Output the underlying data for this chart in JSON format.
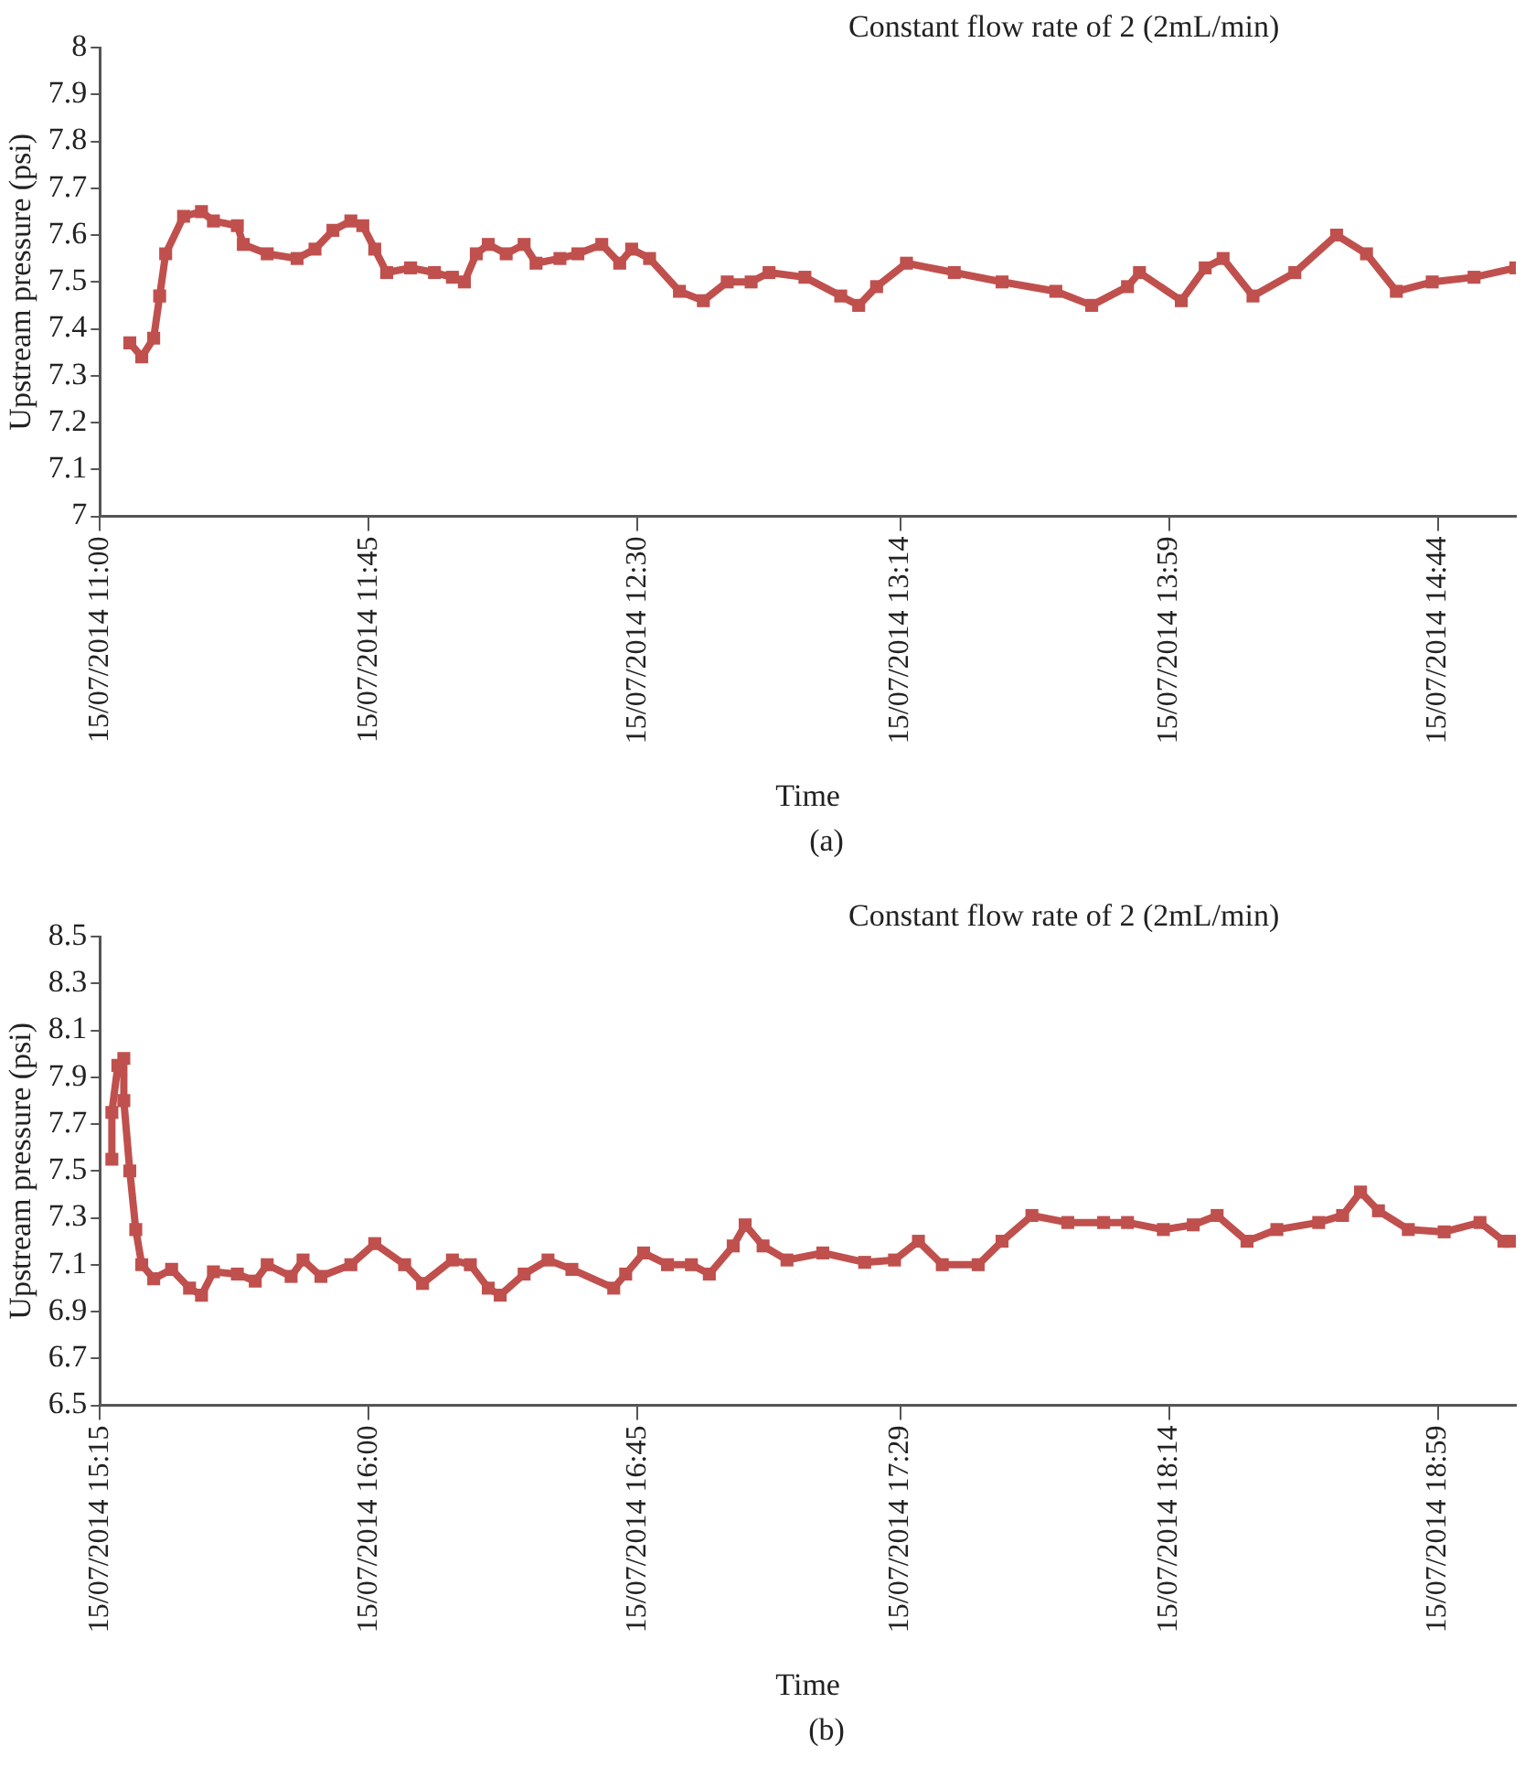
{
  "chart_data": [
    {
      "type": "line",
      "title": "Constant flow rate of 2 (2mL/min)",
      "xlabel": "Time",
      "ylabel": "Upstream pressure (psi)",
      "annotations": [
        "(a)"
      ],
      "marker": "square",
      "line_style": "solid",
      "grid": false,
      "legend": false,
      "xlim": [
        "2014-07-15T11:00",
        "2014-07-15T14:57"
      ],
      "xticks": [
        {
          "value": "2014-07-15T11:00",
          "label": "15/07/2014 11:00"
        },
        {
          "value": "2014-07-15T11:45",
          "label": "15/07/2014 11:45"
        },
        {
          "value": "2014-07-15T12:30",
          "label": "15/07/2014 12:30"
        },
        {
          "value": "2014-07-15T13:14",
          "label": "15/07/2014 13:14"
        },
        {
          "value": "2014-07-15T13:59",
          "label": "15/07/2014 13:59"
        },
        {
          "value": "2014-07-15T14:44",
          "label": "15/07/2014 14:44"
        }
      ],
      "ylim": [
        7,
        8
      ],
      "yticks": [
        7,
        7.1,
        7.2,
        7.3,
        7.4,
        7.5,
        7.6,
        7.7,
        7.8,
        7.9,
        8
      ],
      "series": [
        {
          "color": "#c0504d",
          "x": [
            "2014-07-15T11:05",
            "2014-07-15T11:07",
            "2014-07-15T11:09",
            "2014-07-15T11:10",
            "2014-07-15T11:11",
            "2014-07-15T11:14",
            "2014-07-15T11:17",
            "2014-07-15T11:19",
            "2014-07-15T11:23",
            "2014-07-15T11:24",
            "2014-07-15T11:28",
            "2014-07-15T11:33",
            "2014-07-15T11:36",
            "2014-07-15T11:39",
            "2014-07-15T11:42",
            "2014-07-15T11:44",
            "2014-07-15T11:46",
            "2014-07-15T11:48",
            "2014-07-15T11:52",
            "2014-07-15T11:56",
            "2014-07-15T11:59",
            "2014-07-15T12:01",
            "2014-07-15T12:03",
            "2014-07-15T12:05",
            "2014-07-15T12:08",
            "2014-07-15T12:11",
            "2014-07-15T12:13",
            "2014-07-15T12:17",
            "2014-07-15T12:20",
            "2014-07-15T12:24",
            "2014-07-15T12:27",
            "2014-07-15T12:29",
            "2014-07-15T12:32",
            "2014-07-15T12:37",
            "2014-07-15T12:41",
            "2014-07-15T12:45",
            "2014-07-15T12:49",
            "2014-07-15T12:52",
            "2014-07-15T12:58",
            "2014-07-15T13:04",
            "2014-07-15T13:07",
            "2014-07-15T13:10",
            "2014-07-15T13:15",
            "2014-07-15T13:23",
            "2014-07-15T13:31",
            "2014-07-15T13:40",
            "2014-07-15T13:46",
            "2014-07-15T13:52",
            "2014-07-15T13:54",
            "2014-07-15T14:01",
            "2014-07-15T14:05",
            "2014-07-15T14:08",
            "2014-07-15T14:13",
            "2014-07-15T14:20",
            "2014-07-15T14:27",
            "2014-07-15T14:32",
            "2014-07-15T14:37",
            "2014-07-15T14:43",
            "2014-07-15T14:50",
            "2014-07-15T14:57"
          ],
          "values": [
            7.37,
            7.34,
            7.38,
            7.47,
            7.56,
            7.64,
            7.65,
            7.63,
            7.62,
            7.58,
            7.56,
            7.55,
            7.57,
            7.61,
            7.63,
            7.62,
            7.57,
            7.52,
            7.53,
            7.52,
            7.51,
            7.5,
            7.56,
            7.58,
            7.56,
            7.58,
            7.54,
            7.55,
            7.56,
            7.58,
            7.54,
            7.57,
            7.55,
            7.48,
            7.46,
            7.5,
            7.5,
            7.52,
            7.51,
            7.47,
            7.45,
            7.49,
            7.54,
            7.52,
            7.5,
            7.48,
            7.45,
            7.49,
            7.52,
            7.46,
            7.53,
            7.55,
            7.47,
            7.52,
            7.6,
            7.56,
            7.48,
            7.5,
            7.51,
            7.53
          ]
        }
      ]
    },
    {
      "type": "line",
      "title": "Constant flow rate of 2 (2mL/min)",
      "xlabel": "Time",
      "ylabel": "Upstream pressure (psi)",
      "annotations": [
        "(b)"
      ],
      "marker": "square",
      "line_style": "solid",
      "grid": false,
      "legend": false,
      "xlim": [
        "2014-07-15T15:15",
        "2014-07-15T19:12"
      ],
      "xticks": [
        {
          "value": "2014-07-15T15:15",
          "label": "15/07/2014 15:15"
        },
        {
          "value": "2014-07-15T16:00",
          "label": "15/07/2014 16:00"
        },
        {
          "value": "2014-07-15T16:45",
          "label": "15/07/2014 16:45"
        },
        {
          "value": "2014-07-15T17:29",
          "label": "15/07/2014 17:29"
        },
        {
          "value": "2014-07-15T18:14",
          "label": "15/07/2014 18:14"
        },
        {
          "value": "2014-07-15T18:59",
          "label": "15/07/2014 18:59"
        }
      ],
      "ylim": [
        6.5,
        8.5
      ],
      "yticks": [
        6.5,
        6.7,
        6.9,
        7.1,
        7.3,
        7.5,
        7.7,
        7.9,
        8.1,
        8.3,
        8.5
      ],
      "series": [
        {
          "color": "#c0504d",
          "x": [
            "2014-07-15T15:17",
            "2014-07-15T15:17",
            "2014-07-15T15:18",
            "2014-07-15T15:19",
            "2014-07-15T15:19",
            "2014-07-15T15:20",
            "2014-07-15T15:21",
            "2014-07-15T15:22",
            "2014-07-15T15:24",
            "2014-07-15T15:27",
            "2014-07-15T15:30",
            "2014-07-15T15:32",
            "2014-07-15T15:34",
            "2014-07-15T15:38",
            "2014-07-15T15:41",
            "2014-07-15T15:43",
            "2014-07-15T15:47",
            "2014-07-15T15:49",
            "2014-07-15T15:52",
            "2014-07-15T15:57",
            "2014-07-15T16:01",
            "2014-07-15T16:06",
            "2014-07-15T16:09",
            "2014-07-15T16:14",
            "2014-07-15T16:17",
            "2014-07-15T16:20",
            "2014-07-15T16:22",
            "2014-07-15T16:26",
            "2014-07-15T16:30",
            "2014-07-15T16:34",
            "2014-07-15T16:41",
            "2014-07-15T16:43",
            "2014-07-15T16:46",
            "2014-07-15T16:50",
            "2014-07-15T16:54",
            "2014-07-15T16:57",
            "2014-07-15T17:01",
            "2014-07-15T17:03",
            "2014-07-15T17:06",
            "2014-07-15T17:10",
            "2014-07-15T17:16",
            "2014-07-15T17:23",
            "2014-07-15T17:28",
            "2014-07-15T17:32",
            "2014-07-15T17:36",
            "2014-07-15T17:42",
            "2014-07-15T17:46",
            "2014-07-15T17:51",
            "2014-07-15T17:57",
            "2014-07-15T18:03",
            "2014-07-15T18:07",
            "2014-07-15T18:13",
            "2014-07-15T18:18",
            "2014-07-15T18:22",
            "2014-07-15T18:27",
            "2014-07-15T18:32",
            "2014-07-15T18:39",
            "2014-07-15T18:43",
            "2014-07-15T18:46",
            "2014-07-15T18:49",
            "2014-07-15T18:54",
            "2014-07-15T19:00",
            "2014-07-15T19:06",
            "2014-07-15T19:10",
            "2014-07-15T19:11"
          ],
          "values": [
            7.55,
            7.75,
            7.95,
            7.98,
            7.8,
            7.5,
            7.25,
            7.1,
            7.04,
            7.08,
            7,
            6.97,
            7.07,
            7.06,
            7.03,
            7.1,
            7.05,
            7.12,
            7.05,
            7.1,
            7.19,
            7.1,
            7.02,
            7.12,
            7.1,
            7,
            6.97,
            7.06,
            7.12,
            7.08,
            7,
            7.06,
            7.15,
            7.1,
            7.1,
            7.06,
            7.18,
            7.27,
            7.18,
            7.12,
            7.15,
            7.11,
            7.12,
            7.2,
            7.1,
            7.1,
            7.2,
            7.31,
            7.28,
            7.28,
            7.28,
            7.25,
            7.27,
            7.31,
            7.2,
            7.25,
            7.28,
            7.31,
            7.41,
            7.33,
            7.25,
            7.24,
            7.28,
            7.2,
            7.2
          ]
        }
      ]
    }
  ]
}
